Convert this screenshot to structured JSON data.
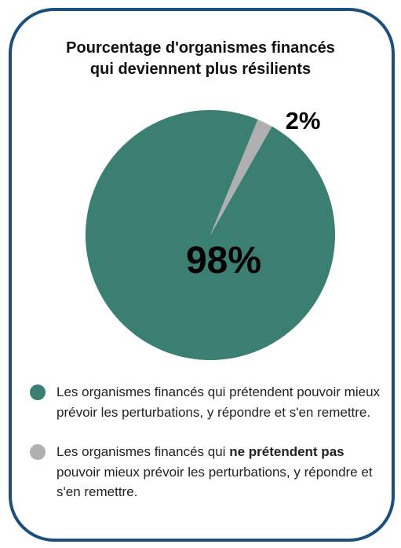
{
  "colors": {
    "border": "#1d4f7c",
    "resilient": "#3a7f72",
    "not_resilient": "#b0b0b0"
  },
  "chart_data": {
    "type": "pie",
    "title": "Pourcentage d'organismes financés qui deviennent plus résilients",
    "slices": [
      {
        "label": "98%",
        "value": 98,
        "color": "#3a7f72"
      },
      {
        "label": "2%",
        "value": 2,
        "color": "#b0b0b0"
      }
    ]
  },
  "title": {
    "line1": "Pourcentage d'organismes financés",
    "line2": "qui deviennent plus résilients"
  },
  "legend": {
    "item1": {
      "text": "Les organismes financés qui prétendent pouvoir mieux prévoir les perturbations, y répondre et s'en remettre."
    },
    "item2": {
      "before": "Les organismes financés qui ",
      "bold": "ne prétendent pas",
      "after": " pouvoir mieux prévoir les perturbations, y répondre et s'en remettre."
    }
  }
}
